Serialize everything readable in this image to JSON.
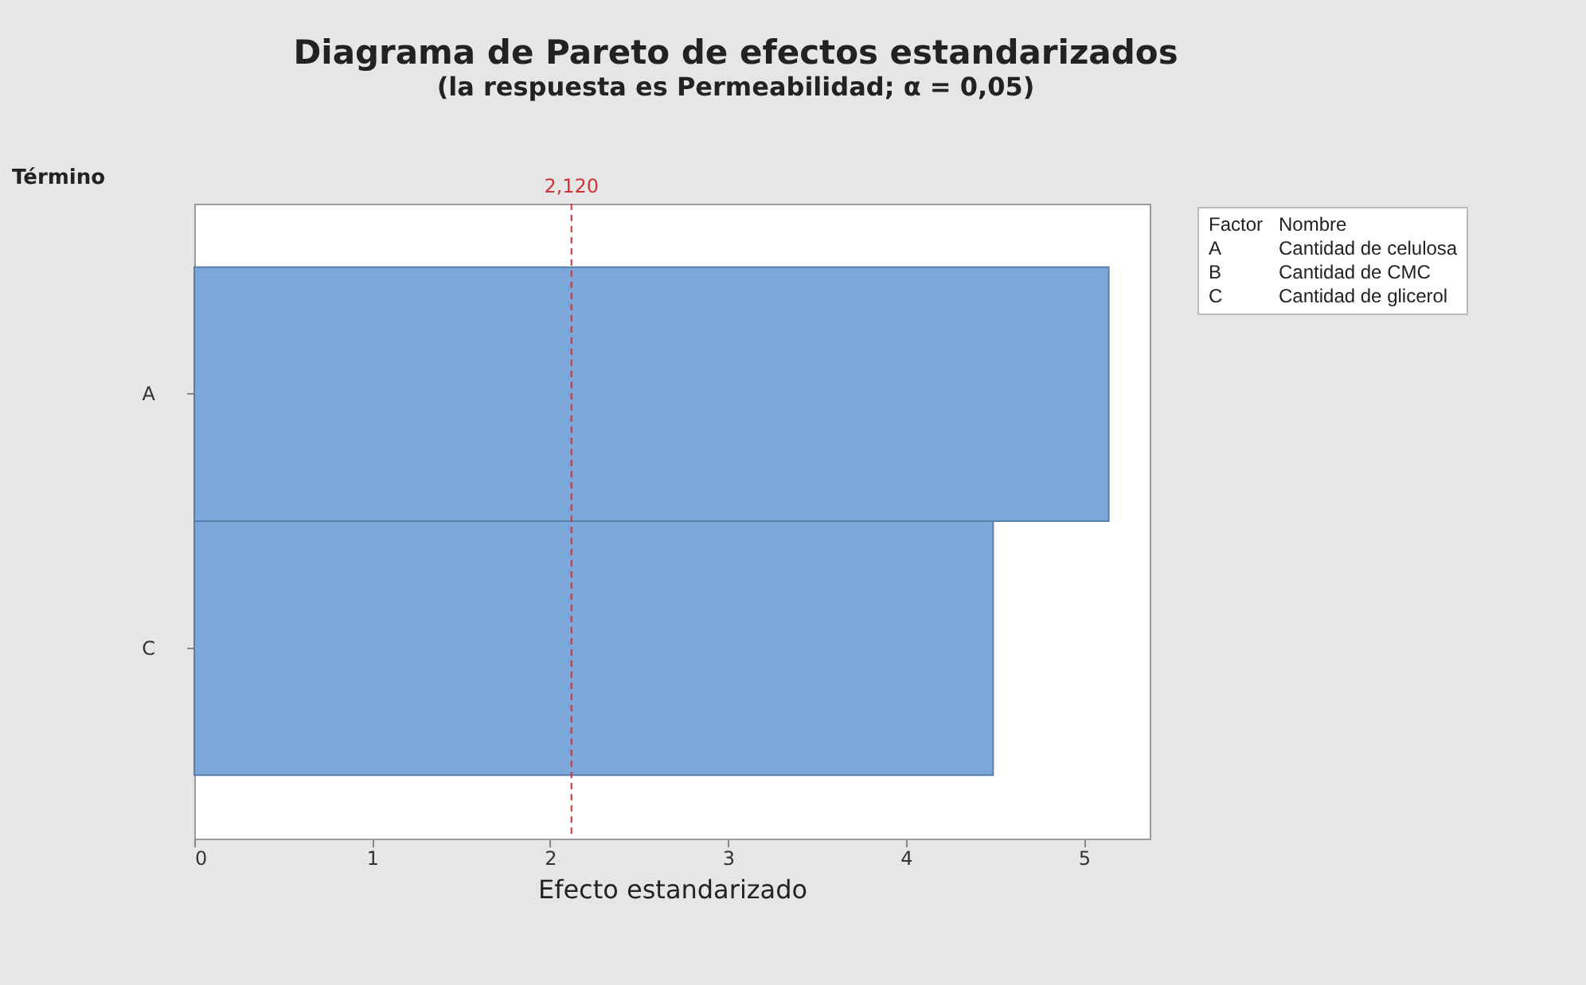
{
  "chart_data": {
    "type": "bar",
    "orientation": "horizontal",
    "title": "Diagrama de Pareto de efectos estandarizados",
    "subtitle": "(la respuesta es Permeabilidad; α = 0,05)",
    "xlabel": "Efecto estandarizado",
    "ylabel": "Término",
    "categories": [
      "A",
      "C"
    ],
    "values": [
      5.14,
      4.49
    ],
    "color": "#7ba7d9",
    "xlim": [
      0,
      5.37
    ],
    "xticks": [
      0,
      1,
      2,
      3,
      4,
      5
    ],
    "ref_lines": [
      {
        "axis": "x",
        "value": 2.12,
        "label": "2,120",
        "color": "#d0343a",
        "line_style": "dashed"
      }
    ],
    "annotations": [
      "Factor",
      "Nombre",
      "A",
      "Cantidad de celulosa",
      "B",
      "Cantidad de CMC",
      "C",
      "Cantidad de glicerol"
    ]
  }
}
